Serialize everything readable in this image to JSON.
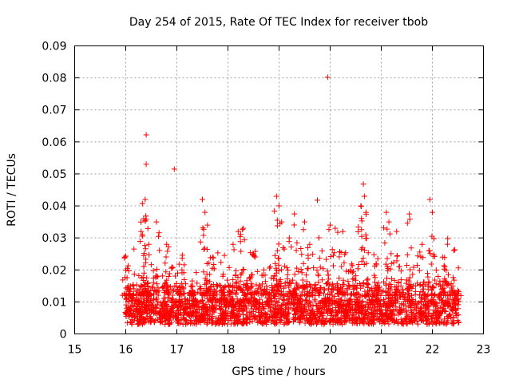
{
  "chart_data": {
    "type": "scatter",
    "title": "Day 254 of 2015, Rate Of TEC Index for receiver tbob",
    "xlabel": "GPS time / hours",
    "ylabel": "ROTI / TECUs",
    "xlim": [
      15,
      23
    ],
    "ylim": [
      0,
      0.09
    ],
    "xticks": [
      15,
      16,
      17,
      18,
      19,
      20,
      21,
      22,
      23
    ],
    "yticks": [
      0,
      0.01,
      0.02,
      0.03,
      0.04,
      0.05,
      0.06,
      0.07,
      0.08,
      0.09
    ],
    "xtick_labels": [
      "15",
      "16",
      "17",
      "18",
      "19",
      "20",
      "21",
      "22",
      "23"
    ],
    "ytick_labels": [
      "0",
      "0.01",
      "0.02",
      "0.03",
      "0.04",
      "0.05",
      "0.06",
      "0.07",
      "0.08",
      "0.09"
    ],
    "grid": true,
    "marker": "+",
    "series": [
      {
        "name": "ROTI",
        "color": "#ff0000",
        "data_window": [
          15.98,
          22.52
        ],
        "points": [
          [
            15.98,
            0.024
          ],
          [
            16.05,
            0.015
          ],
          [
            16.1,
            0.012
          ],
          [
            16.3,
            0.032
          ],
          [
            16.35,
            0.036
          ],
          [
            16.38,
            0.042
          ],
          [
            16.4,
            0.0622
          ],
          [
            16.4,
            0.053
          ],
          [
            16.45,
            0.028
          ],
          [
            16.6,
            0.035
          ],
          [
            16.8,
            0.028
          ],
          [
            16.95,
            0.0515
          ],
          [
            17.1,
            0.02
          ],
          [
            17.3,
            0.015
          ],
          [
            17.5,
            0.042
          ],
          [
            17.55,
            0.038
          ],
          [
            17.6,
            0.034
          ],
          [
            17.7,
            0.024
          ],
          [
            17.9,
            0.018
          ],
          [
            18.1,
            0.028
          ],
          [
            18.2,
            0.032
          ],
          [
            18.3,
            0.033
          ],
          [
            18.5,
            0.025
          ],
          [
            18.7,
            0.02
          ],
          [
            18.95,
            0.043
          ],
          [
            19.0,
            0.04
          ],
          [
            19.05,
            0.035
          ],
          [
            19.2,
            0.03
          ],
          [
            19.3,
            0.0375
          ],
          [
            19.5,
            0.035
          ],
          [
            19.6,
            0.028
          ],
          [
            19.75,
            0.0418
          ],
          [
            19.95,
            0.0802
          ],
          [
            20.0,
            0.034
          ],
          [
            20.1,
            0.033
          ],
          [
            20.25,
            0.032
          ],
          [
            20.4,
            0.02
          ],
          [
            20.6,
            0.04
          ],
          [
            20.65,
            0.0468
          ],
          [
            20.67,
            0.043
          ],
          [
            20.7,
            0.038
          ],
          [
            20.9,
            0.022
          ],
          [
            21.1,
            0.038
          ],
          [
            21.15,
            0.035
          ],
          [
            21.3,
            0.032
          ],
          [
            21.55,
            0.0375
          ],
          [
            21.8,
            0.028
          ],
          [
            21.95,
            0.042
          ],
          [
            22.0,
            0.038
          ],
          [
            22.2,
            0.024
          ],
          [
            22.3,
            0.0298
          ],
          [
            22.4,
            0.015
          ],
          [
            22.5,
            0.012
          ]
        ],
        "dense_band": {
          "min": 0.003,
          "max": 0.02,
          "typical": 0.008
        }
      }
    ]
  }
}
